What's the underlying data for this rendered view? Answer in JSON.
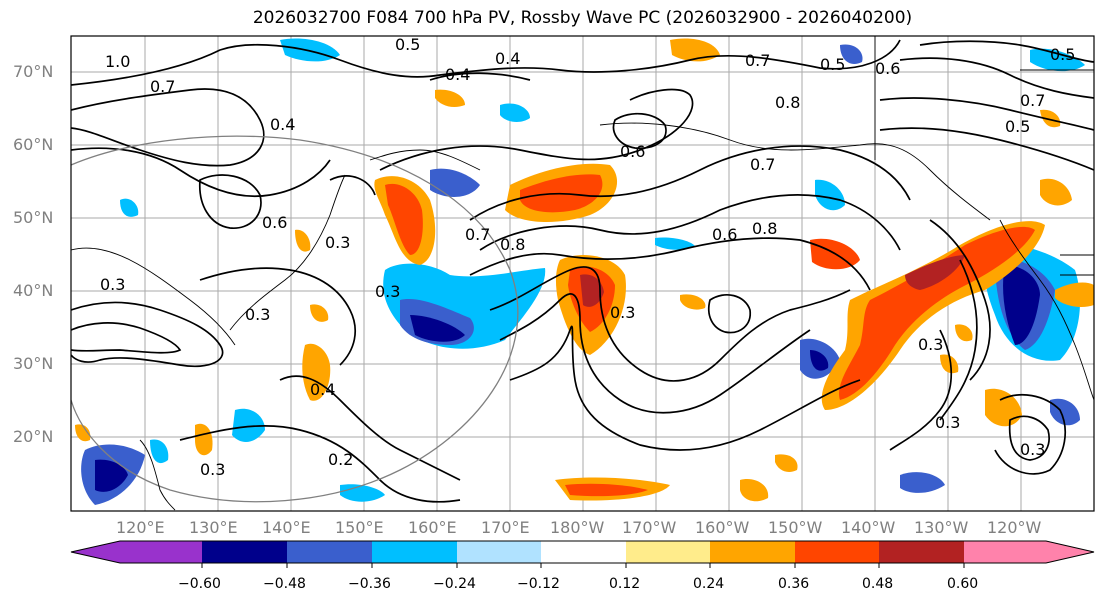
{
  "title": "2026032700 F084 700 hPa PV, Rossby Wave PC (2026032900 - 2026040200)",
  "lat_labels": [
    "70°N",
    "60°N",
    "50°N",
    "40°N",
    "30°N",
    "20°N"
  ],
  "lon_labels": [
    "120°E",
    "130°E",
    "140°E",
    "150°E",
    "160°E",
    "170°E",
    "180°W",
    "170°W",
    "160°W",
    "150°W",
    "140°W",
    "130°W",
    "120°W"
  ],
  "contour_labels": [
    "1.0",
    "0.7",
    "0.4",
    "0.4",
    "0.4",
    "0.5",
    "0.7",
    "0.5",
    "0.6",
    "0.7",
    "0.5",
    "0.6",
    "0.6",
    "0.3",
    "0.8",
    "0.3",
    "0.7",
    "0.6",
    "0.8",
    "0.3",
    "0.3",
    "0.4",
    "0.2",
    "0.3",
    "0.3",
    "0.3",
    "0.3",
    "0.3",
    "0.5",
    "0.8",
    "0.7"
  ],
  "colorbar": {
    "ticks": [
      "−0.60",
      "−0.48",
      "−0.36",
      "−0.24",
      "−0.12",
      "0.12",
      "0.24",
      "0.36",
      "0.48",
      "0.60"
    ],
    "colors": [
      "#9932cc",
      "#00008b",
      "#3a5fcd",
      "#00bfff",
      "#b0e2ff",
      "#ffffff",
      "#ffec8b",
      "#ffa500",
      "#ff4500",
      "#b22222",
      "#ff82ab"
    ]
  }
}
